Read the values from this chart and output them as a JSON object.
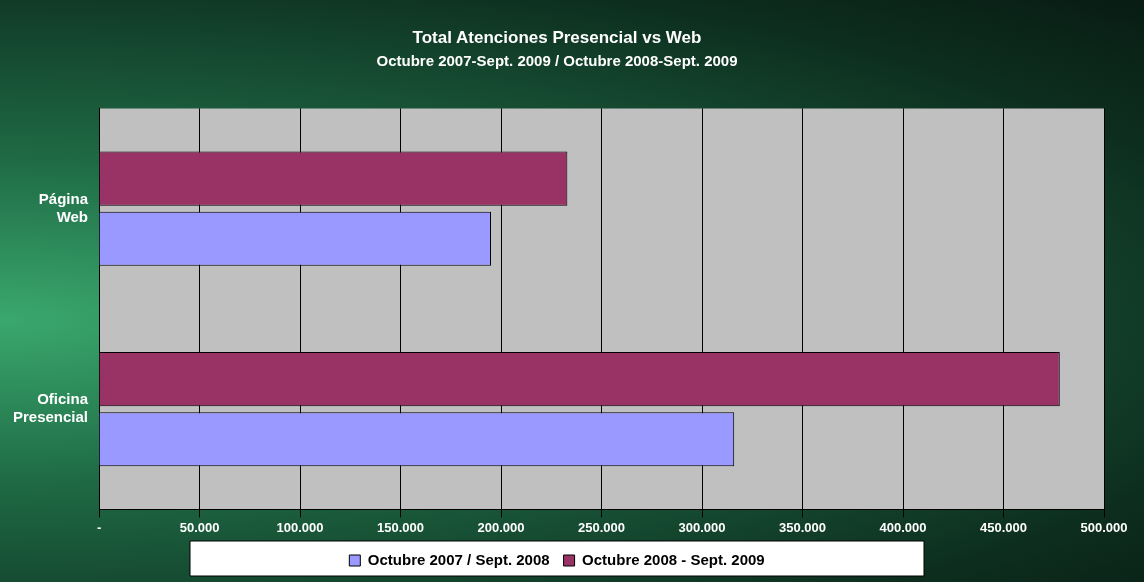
{
  "chart_data": {
    "type": "bar",
    "orientation": "horizontal",
    "title": "Total Atenciones Presencial vs Web",
    "subtitle": "Octubre 2007-Sept. 2009 / Octubre 2008-Sept. 2009",
    "categories": [
      "Página Web",
      "Oficina Presencial"
    ],
    "series": [
      {
        "name": "Octubre 2007 / Sept. 2008",
        "color": "#9999ff",
        "values": [
          195000,
          316000
        ]
      },
      {
        "name": "Octubre 2008 - Sept. 2009",
        "color": "#993366",
        "values": [
          233000,
          478000
        ]
      }
    ],
    "xlim": [
      0,
      500000
    ],
    "xticks": [
      {
        "value": 0,
        "label": "-"
      },
      {
        "value": 50000,
        "label": "50.000"
      },
      {
        "value": 100000,
        "label": "100.000"
      },
      {
        "value": 150000,
        "label": "150.000"
      },
      {
        "value": 200000,
        "label": "200.000"
      },
      {
        "value": 250000,
        "label": "250.000"
      },
      {
        "value": 300000,
        "label": "300.000"
      },
      {
        "value": 350000,
        "label": "350.000"
      },
      {
        "value": 400000,
        "label": "400.000"
      },
      {
        "value": 450000,
        "label": "450.000"
      },
      {
        "value": 500000,
        "label": "500.000"
      }
    ],
    "grid": "x",
    "legend": "bottom"
  }
}
